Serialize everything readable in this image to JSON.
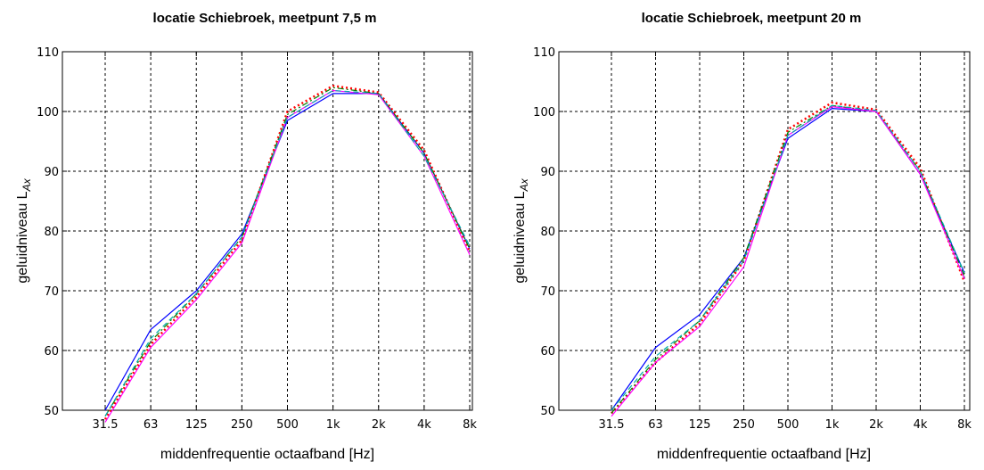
{
  "chart_data": [
    {
      "type": "line",
      "title": "locatie Schiebroek, meetpunt 7,5 m",
      "xlabel": "middenfrequentie octaafband [Hz]",
      "ylabel": "geluidniveau L",
      "ylabel_sub": "Ax",
      "categories": [
        "31.5",
        "63",
        "125",
        "250",
        "500",
        "1k",
        "2k",
        "4k",
        "8k"
      ],
      "yticks": [
        "50",
        "60",
        "70",
        "80",
        "90",
        "100",
        "110"
      ],
      "ylim": [
        50,
        110
      ],
      "grid": true,
      "series": [
        {
          "color": "#0000ff",
          "dash": "solid",
          "values": [
            50,
            63.5,
            70,
            79.5,
            98.5,
            103,
            103,
            93,
            77
          ]
        },
        {
          "color": "#ff0000",
          "dash": "dotted",
          "values": [
            48.5,
            61,
            69,
            78.5,
            100,
            104.3,
            103.2,
            93.5,
            76.5
          ]
        },
        {
          "color": "#008000",
          "dash": "dashdot",
          "values": [
            49,
            61.5,
            69.5,
            79,
            99.5,
            104,
            103,
            93,
            77
          ]
        },
        {
          "color": "#ff00ff",
          "dash": "solid",
          "values": [
            48,
            60.5,
            68.5,
            78,
            99,
            103.5,
            102.8,
            92.5,
            76
          ]
        },
        {
          "color": "#00aaaa",
          "dash": "dashed",
          "values": [
            49,
            62,
            69.5,
            79,
            99,
            103.5,
            103,
            92.5,
            77.5
          ]
        }
      ]
    },
    {
      "type": "line",
      "title": "locatie Schiebroek, meetpunt 20 m",
      "xlabel": "middenfrequentie octaafband [Hz]",
      "ylabel": "geluidniveau L",
      "ylabel_sub": "Ax",
      "categories": [
        "31.5",
        "63",
        "125",
        "250",
        "500",
        "1k",
        "2k",
        "4k",
        "8k"
      ],
      "yticks": [
        "50",
        "60",
        "70",
        "80",
        "90",
        "100",
        "110"
      ],
      "ylim": [
        50,
        110
      ],
      "grid": true,
      "series": [
        {
          "color": "#0000ff",
          "dash": "solid",
          "values": [
            50,
            60.5,
            66,
            75.5,
            95.5,
            100.5,
            100,
            89.5,
            73
          ]
        },
        {
          "color": "#ff0000",
          "dash": "dotted",
          "values": [
            49.5,
            58,
            64.5,
            75,
            97,
            101.5,
            100.3,
            90.5,
            71.5
          ]
        },
        {
          "color": "#008000",
          "dash": "dashdot",
          "values": [
            49.5,
            58.5,
            65,
            75.5,
            96.5,
            101,
            100,
            90,
            72.5
          ]
        },
        {
          "color": "#ff00ff",
          "dash": "solid",
          "values": [
            49,
            58,
            64,
            74,
            96,
            100.8,
            100,
            89.5,
            72
          ]
        },
        {
          "color": "#00aaaa",
          "dash": "dashed",
          "values": [
            50,
            59,
            65,
            75,
            96,
            101,
            100.2,
            90,
            73
          ]
        }
      ]
    }
  ]
}
